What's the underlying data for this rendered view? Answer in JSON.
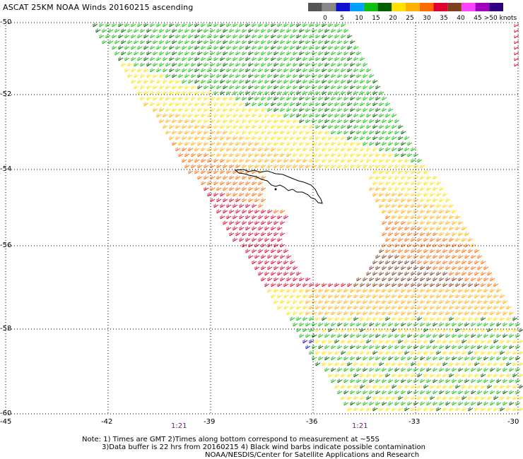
{
  "title": "ASCAT 25KM NOAA Winds 20160215 ascending",
  "legend": {
    "colors": [
      "#555555",
      "#888888",
      "#1010d0",
      "#00a0ff",
      "#10c010",
      "#006000",
      "#ffe000",
      "#ffb000",
      "#ff6a00",
      "#e00030",
      "#804020",
      "#ff40ff",
      "#a000c0",
      "#300080"
    ],
    "labels": [
      "0",
      "5",
      "10",
      "15",
      "20",
      "25",
      "30",
      "35",
      "40",
      "45",
      ">50 knots"
    ]
  },
  "axes": {
    "lat_labels": [
      "-50",
      "-52",
      "-54",
      "-56",
      "-58",
      "-60"
    ],
    "lon_labels": [
      "-45",
      "-42",
      "-39",
      "-36",
      "-33",
      "-30"
    ]
  },
  "times": [
    "1:21",
    "1:21"
  ],
  "notes": {
    "line1": "Note: 1) Times are GMT 2)Times along bottom correspond to measurement at ~55S",
    "line2": "3)Data buffer is 22 hrs from 20160215 4) Black wind barbs indicate possible contamination",
    "line3": "NOAA/NESDIS/Center for Satellite Applications and Research"
  }
}
